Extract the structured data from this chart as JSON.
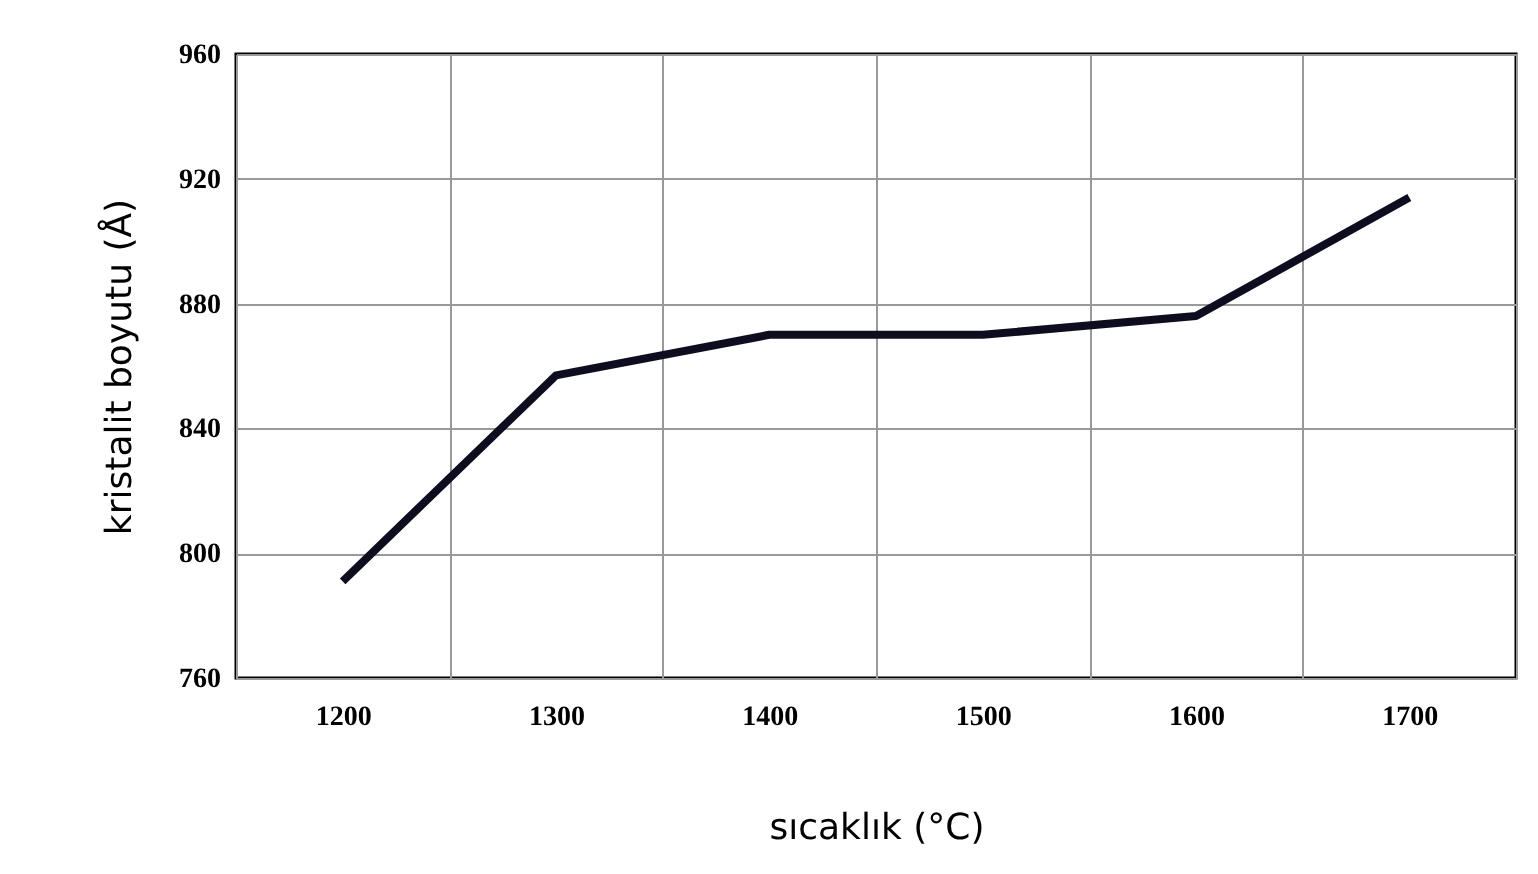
{
  "chart_data": {
    "type": "line",
    "xlabel": "sıcaklık (°C)",
    "ylabel": "kristalit boyutu (Å)",
    "categories": [
      "1200",
      "1300",
      "1400",
      "1500",
      "1600",
      "1700"
    ],
    "series": [
      {
        "color": "#0d0d1f",
        "values": [
          791,
          857,
          870,
          870,
          876,
          914
        ]
      }
    ],
    "ylim": [
      760,
      960
    ],
    "yticks": [
      760,
      800,
      840,
      880,
      920,
      960
    ],
    "grid": true,
    "marker": "none",
    "line_style": "solid"
  }
}
